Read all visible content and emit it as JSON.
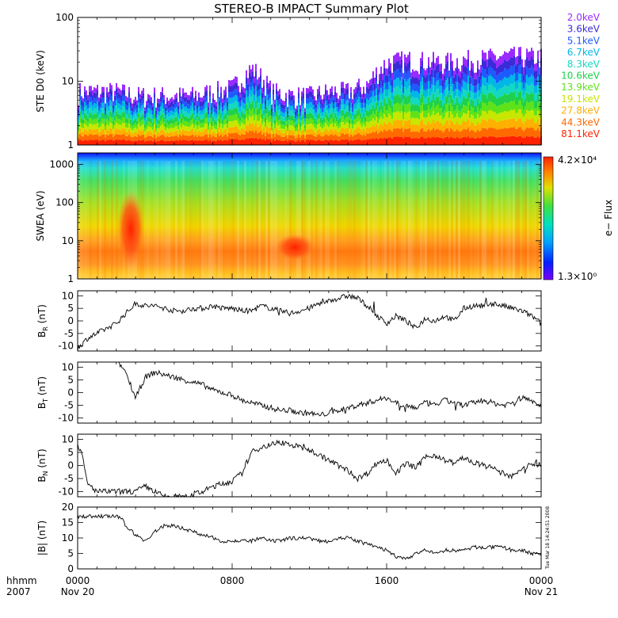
{
  "title": "STEREO-B IMPACT Summary Plot",
  "stamp": "Tue Mar 18 14:24:51 2008",
  "x_axis": {
    "corner_top": "hhmm",
    "corner_bottom": "2007",
    "ticks": [
      "0000",
      "0800",
      "1600",
      "0000"
    ],
    "date_left": "Nov 20",
    "date_right": "Nov 21",
    "range_hours": [
      0,
      24
    ]
  },
  "colors": {
    "trace": "#000000",
    "energies": [
      "#9a2bff",
      "#3a2bd9",
      "#1e5bff",
      "#00b7e6",
      "#14d9c0",
      "#1fd14a",
      "#5ee31a",
      "#c7e600",
      "#ffb000",
      "#ff6a00",
      "#ff2200"
    ]
  },
  "chart_data": [
    {
      "type": "area",
      "ylabel": "STE D0 (keV)",
      "yscale": "log",
      "ylim": [
        1,
        100
      ],
      "y_ticks": [
        "100",
        "10",
        "1"
      ],
      "legend_placement": "right",
      "channels": [
        "2.0keV",
        "3.6keV",
        "5.1keV",
        "6.7keV",
        "8.3keV",
        "10.6keV",
        "13.9keV",
        "19.1keV",
        "27.8keV",
        "44.3keV",
        "81.1keV"
      ],
      "x_hours": [
        0,
        1,
        2,
        3,
        4,
        5,
        6,
        7,
        8,
        9,
        10,
        11,
        12,
        13,
        14,
        15,
        16,
        17,
        18,
        19,
        20,
        21,
        22,
        23,
        24
      ],
      "top_envelope_keV": [
        7,
        7,
        7,
        6,
        6,
        6,
        6,
        7,
        8,
        16,
        7,
        6,
        6,
        7,
        7,
        9,
        20,
        22,
        21,
        20,
        22,
        23,
        25,
        25,
        24
      ]
    },
    {
      "type": "heatmap",
      "ylabel": "SWEA (eV)",
      "yscale": "log",
      "ylim": [
        1,
        2000
      ],
      "y_ticks": [
        "1000",
        "100",
        "10",
        "1"
      ],
      "colorbar_label": "e− Flux",
      "colorbar_max": "4.2×10⁴",
      "colorbar_min": "1.3×10⁰",
      "features": [
        {
          "x_hours": [
            2.3,
            3.2
          ],
          "y_eV": [
            2,
            200
          ],
          "level": "high"
        },
        {
          "x_hours": [
            10.5,
            12.0
          ],
          "y_eV": [
            3,
            15
          ],
          "level": "high"
        }
      ]
    },
    {
      "type": "line",
      "ylabel": "B_R (nT)",
      "ylabel_main": "B",
      "ylabel_sub": "R",
      "ylabel_unit": " (nT)",
      "ylim": [
        -12,
        12
      ],
      "y_ticks": [
        10,
        5,
        0,
        -5,
        -10
      ],
      "x_hours": [
        0,
        0.5,
        1,
        1.5,
        2,
        2.5,
        3,
        3.5,
        4,
        4.5,
        5,
        5.5,
        6,
        6.5,
        7,
        7.5,
        8,
        8.5,
        9,
        9.5,
        10,
        10.5,
        11,
        11.5,
        12,
        12.5,
        13,
        13.5,
        14,
        14.5,
        15,
        15.5,
        16,
        16.5,
        17,
        17.5,
        18,
        18.5,
        19,
        19.5,
        20,
        20.5,
        21,
        21.5,
        22,
        22.5,
        23,
        23.5,
        24
      ],
      "y": [
        -11,
        -7,
        -5,
        -3,
        -1,
        3,
        7,
        6,
        6,
        5,
        4,
        4,
        5,
        5,
        6,
        5,
        5,
        4,
        4,
        6,
        5,
        4,
        3,
        4,
        5,
        7,
        8,
        9,
        10,
        9,
        6,
        2,
        -1,
        2,
        0,
        -3,
        1,
        0,
        2,
        0,
        5,
        6,
        6,
        7,
        6,
        5,
        4,
        2,
        -1
      ]
    },
    {
      "type": "line",
      "ylabel": "B_T (nT)",
      "ylabel_main": "B",
      "ylabel_sub": "T",
      "ylabel_unit": " (nT)",
      "ylim": [
        -12,
        12
      ],
      "y_ticks": [
        10,
        5,
        0,
        -5,
        -10
      ],
      "x_hours": [
        2.1,
        2.5,
        3,
        3.5,
        4,
        4.5,
        5,
        5.5,
        6,
        6.5,
        7,
        7.5,
        8,
        8.5,
        9,
        9.5,
        10,
        10.5,
        11,
        11.5,
        12,
        12.5,
        13,
        13.5,
        14,
        14.5,
        15,
        15.5,
        16,
        16.5,
        17,
        17.5,
        18,
        18.5,
        19,
        19.5,
        20,
        20.5,
        21,
        21.5,
        22,
        22.5,
        23,
        23.5,
        24
      ],
      "y": [
        12,
        8,
        -2,
        6,
        8,
        7,
        6,
        5,
        4,
        3,
        1,
        0,
        -1,
        -3,
        -4,
        -5,
        -6,
        -7,
        -7,
        -8,
        -8,
        -9,
        -8,
        -7,
        -6,
        -5,
        -4,
        -3,
        -2,
        -4,
        -5,
        -6,
        -4,
        -5,
        -3,
        -4,
        -5,
        -4,
        -3,
        -4,
        -5,
        -4,
        -2,
        -3,
        -5
      ]
    },
    {
      "type": "line",
      "ylabel": "B_N (nT)",
      "ylabel_main": "B",
      "ylabel_sub": "N",
      "ylabel_unit": " (nT)",
      "ylim": [
        -12,
        12
      ],
      "y_ticks": [
        10,
        5,
        0,
        -5,
        -10
      ],
      "x_hours": [
        0,
        0.2,
        0.5,
        1,
        1.5,
        2,
        2.5,
        3,
        3.5,
        4,
        4.5,
        5,
        5.5,
        6,
        6.5,
        7,
        7.5,
        8,
        8.5,
        9,
        9.5,
        10,
        10.5,
        11,
        11.5,
        12,
        12.5,
        13,
        13.5,
        14,
        14.5,
        15,
        15.5,
        16,
        16.5,
        17,
        17.5,
        18,
        18.5,
        19,
        19.5,
        20,
        20.5,
        21,
        21.5,
        22,
        22.5,
        23,
        23.5,
        24
      ],
      "y": [
        8,
        5,
        -7,
        -10,
        -10,
        -10,
        -10,
        -10,
        -8,
        -10,
        -12,
        -12,
        -12,
        -11,
        -10,
        -8,
        -7,
        -6,
        -3,
        5,
        7,
        8,
        9,
        8,
        7,
        6,
        4,
        2,
        0,
        -2,
        -5,
        -3,
        1,
        2,
        -3,
        1,
        -1,
        3,
        4,
        2,
        1,
        3,
        1,
        0,
        -1,
        -3,
        -4,
        -2,
        1,
        0
      ]
    },
    {
      "type": "line",
      "ylabel": "|B| (nT)",
      "ylim": [
        0,
        20
      ],
      "y_ticks": [
        20,
        15,
        10,
        5,
        0
      ],
      "x_hours": [
        0,
        0.5,
        1,
        1.5,
        2,
        2.3,
        2.5,
        3,
        3.5,
        4,
        4.5,
        5,
        5.5,
        6,
        6.5,
        7,
        7.5,
        8,
        8.5,
        9,
        9.5,
        10,
        10.5,
        11,
        11.5,
        12,
        12.5,
        13,
        13.5,
        14,
        14.5,
        15,
        15.5,
        16,
        16.5,
        17,
        17.5,
        18,
        18.5,
        19,
        19.5,
        20,
        20.5,
        21,
        21.5,
        22,
        22.5,
        23,
        23.5,
        24
      ],
      "y": [
        17,
        17,
        17,
        17,
        17,
        16,
        14,
        11,
        9,
        12,
        14,
        14,
        13,
        12,
        11,
        10,
        9,
        9,
        9,
        9,
        10,
        9,
        9,
        10,
        10,
        10,
        9,
        9,
        10,
        10,
        9,
        8,
        7,
        6,
        4,
        3,
        5,
        6,
        5,
        6,
        6,
        6,
        7,
        7,
        7,
        7,
        6,
        6,
        5,
        5
      ]
    }
  ]
}
